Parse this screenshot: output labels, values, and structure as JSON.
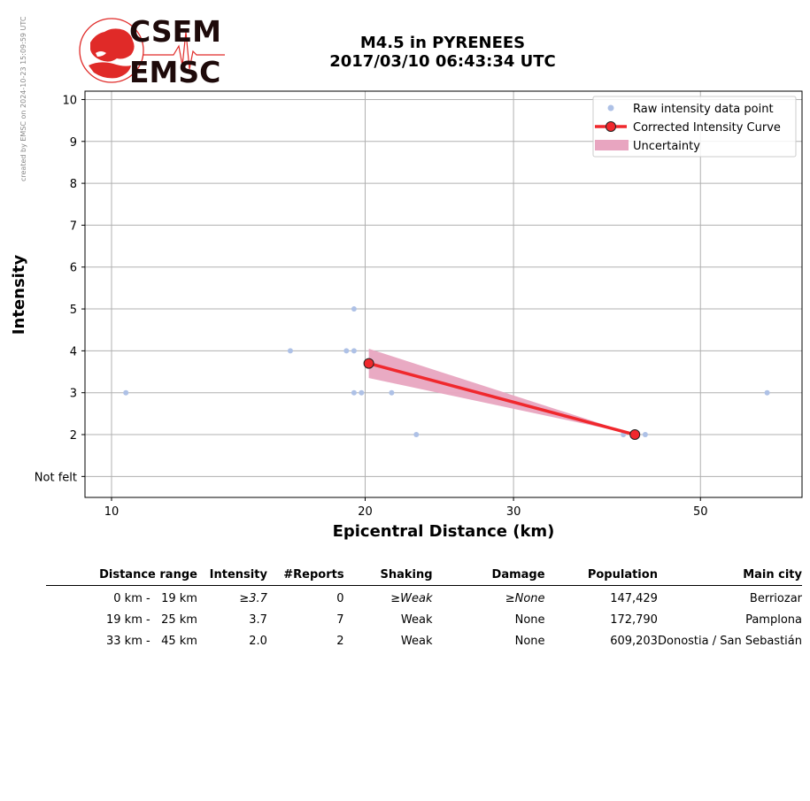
{
  "stamp": "created by EMSC on 2024-10-23 15:09:59 UTC",
  "logo": {
    "line1": "CSEM",
    "line2": "EMSC"
  },
  "title": {
    "line1": "M4.5 in PYRENEES",
    "line2": "2017/03/10 06:43:34 UTC"
  },
  "chart_data": {
    "type": "scatter",
    "xlabel": "Epicentral Distance (km)",
    "ylabel": "Intensity",
    "x_scale": "log",
    "xlim": [
      9.3,
      66
    ],
    "ylim": [
      0.5,
      10.2
    ],
    "x_ticks": [
      10,
      20,
      30,
      50
    ],
    "y_ticks": [
      {
        "value": 1,
        "label": "Not felt"
      },
      {
        "value": 2,
        "label": "2"
      },
      {
        "value": 3,
        "label": "3"
      },
      {
        "value": 4,
        "label": "4"
      },
      {
        "value": 5,
        "label": "5"
      },
      {
        "value": 6,
        "label": "6"
      },
      {
        "value": 7,
        "label": "7"
      },
      {
        "value": 8,
        "label": "8"
      },
      {
        "value": 9,
        "label": "9"
      },
      {
        "value": 10,
        "label": "10"
      }
    ],
    "grid": true,
    "legend_position": "top-right",
    "legend": [
      "Raw intensity data point",
      "Corrected Intensity Curve",
      "Uncertainty"
    ],
    "colors": {
      "raw": "#aec1e6",
      "curve": "#f0282d",
      "uncertainty": "#e8a5c0",
      "marker_edge": "#222222"
    },
    "series": [
      {
        "name": "Raw intensity data point",
        "type": "scatter",
        "points": [
          [
            10.4,
            3
          ],
          [
            16.3,
            4
          ],
          [
            19.0,
            4
          ],
          [
            19.4,
            4
          ],
          [
            19.4,
            5
          ],
          [
            19.4,
            3
          ],
          [
            19.8,
            3
          ],
          [
            21.5,
            3
          ],
          [
            23.0,
            2
          ],
          [
            40.5,
            2
          ],
          [
            43.0,
            2
          ],
          [
            60.0,
            3
          ]
        ]
      },
      {
        "name": "Corrected Intensity Curve",
        "type": "line",
        "points": [
          [
            20.2,
            3.7
          ],
          [
            41.8,
            2.0
          ]
        ]
      },
      {
        "name": "Uncertainty",
        "type": "area",
        "upper": [
          [
            20.2,
            4.05
          ],
          [
            41.8,
            2.0
          ]
        ],
        "lower": [
          [
            20.2,
            3.35
          ],
          [
            41.8,
            2.0
          ]
        ]
      }
    ]
  },
  "table": {
    "headers": [
      "Distance range",
      "Intensity",
      "#Reports",
      "Shaking",
      "Damage",
      "Population",
      "Main city"
    ],
    "rows": [
      {
        "range": "0 km -   19 km",
        "intensity": "≥3.7",
        "reports": "0",
        "shaking": "≥Weak",
        "damage": "≥None",
        "population": "147,429",
        "city": "Berriozar"
      },
      {
        "range": "19 km -   25 km",
        "intensity": "3.7",
        "reports": "7",
        "shaking": "Weak",
        "damage": "None",
        "population": "172,790",
        "city": "Pamplona"
      },
      {
        "range": "33 km -   45 km",
        "intensity": "2.0",
        "reports": "2",
        "shaking": "Weak",
        "damage": "None",
        "population": "609,203",
        "city": "Donostia / San Sebastián"
      }
    ]
  }
}
